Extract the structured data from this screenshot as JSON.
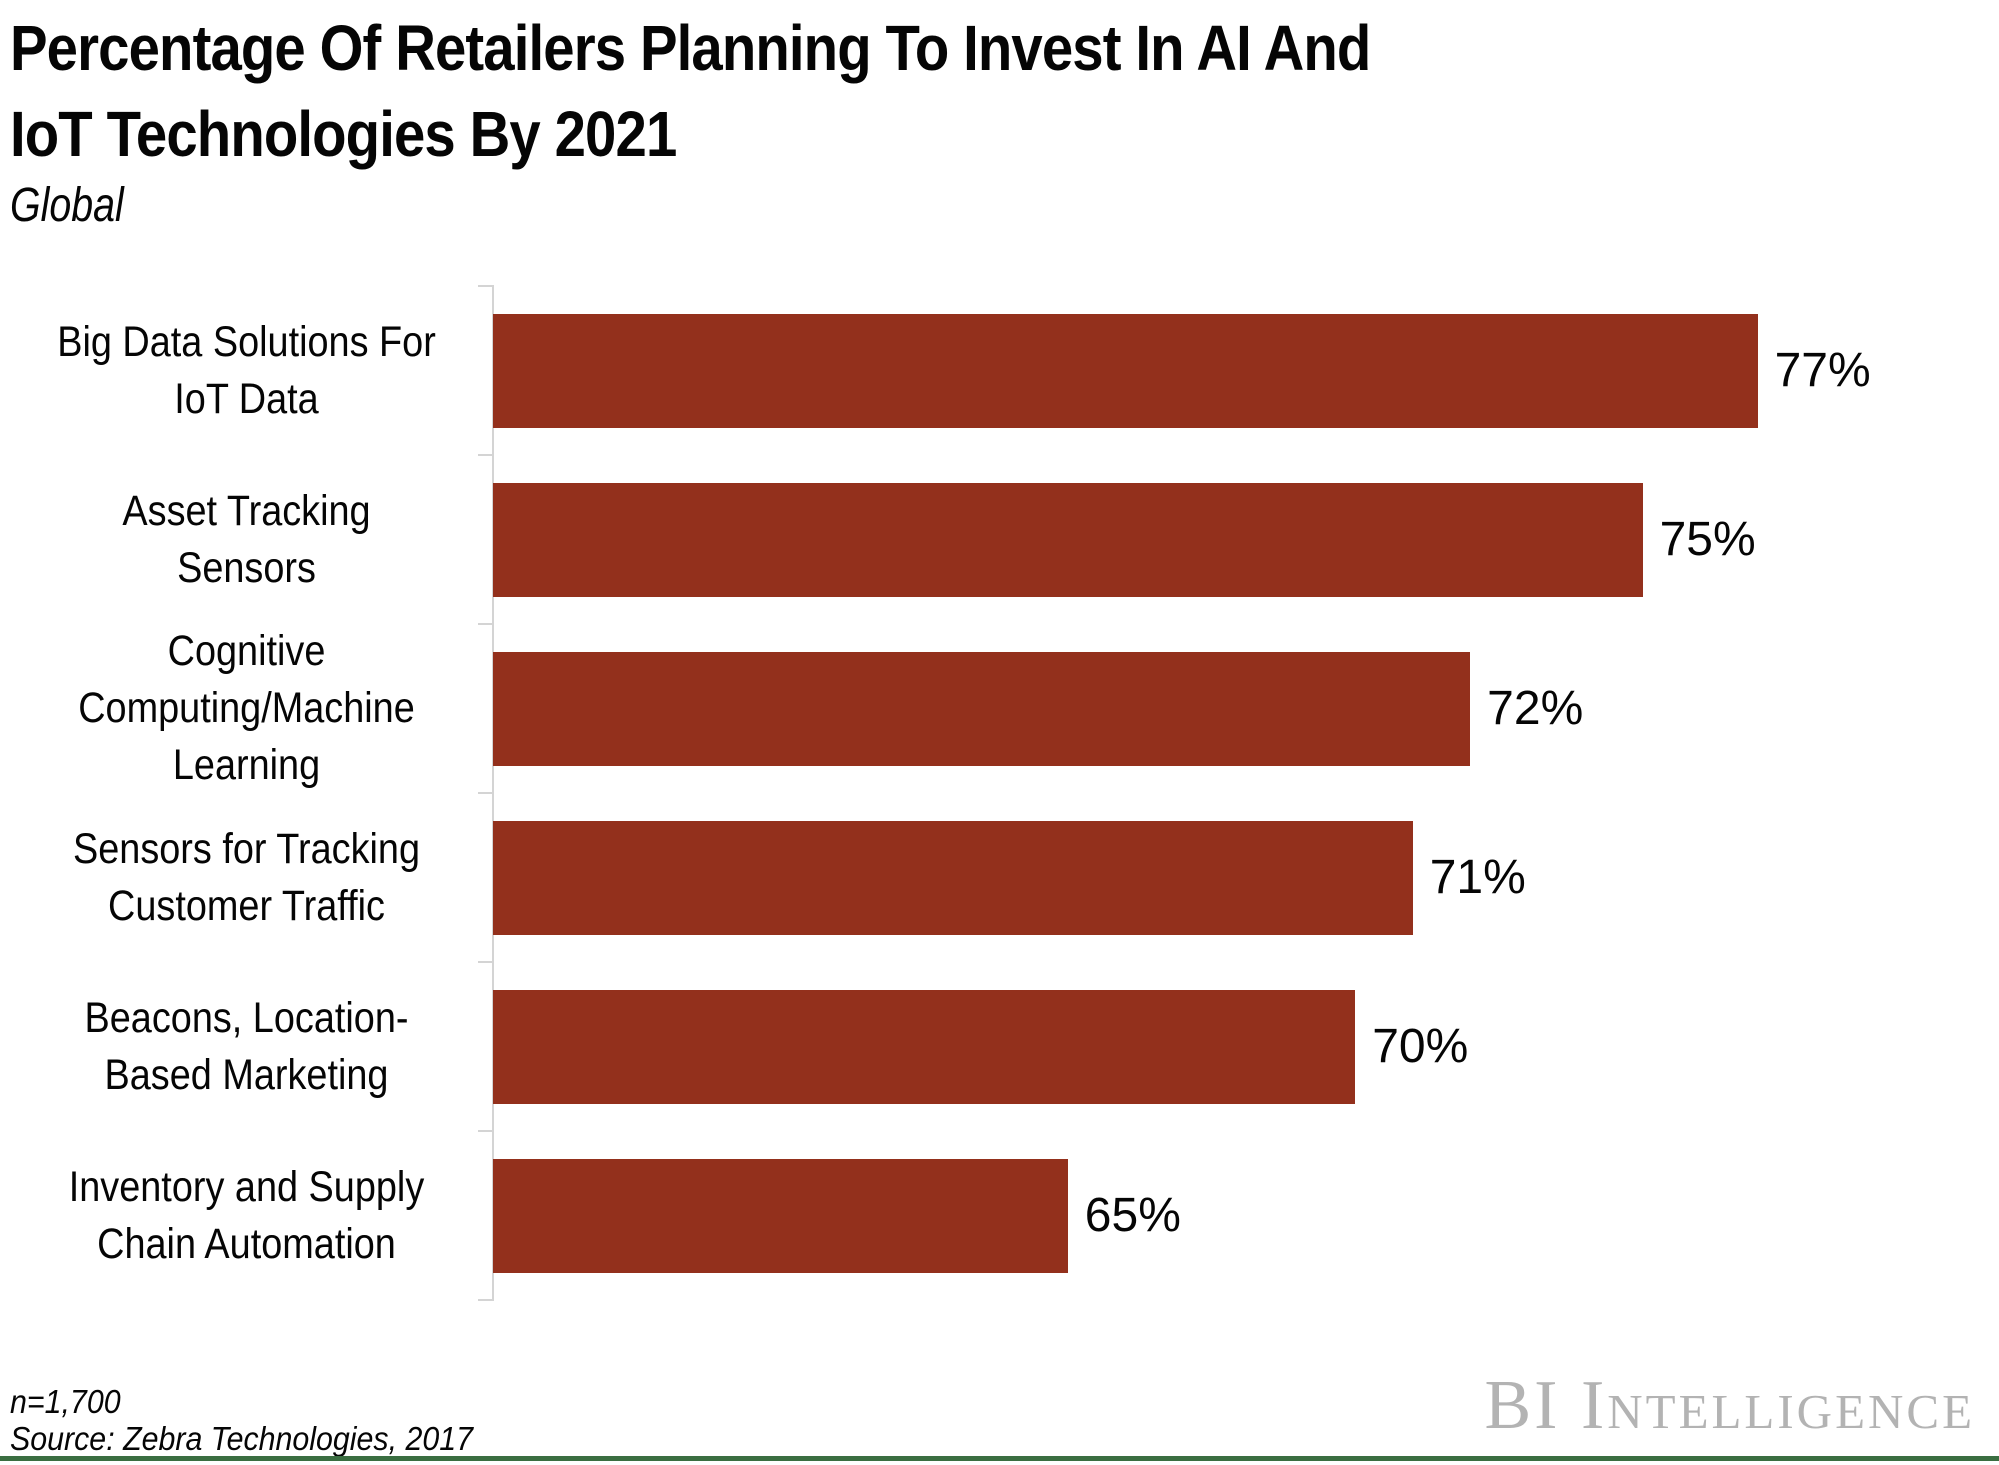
{
  "chart_data": {
    "type": "bar",
    "orientation": "horizontal",
    "title": "Percentage Of Retailers Planning To Invest In AI And IoT Technologies By 2021",
    "title_lines": [
      "Percentage Of Retailers Planning To Invest In AI And",
      "IoT Technologies By 2021"
    ],
    "subtitle": "Global",
    "categories": [
      "Big Data Solutions For IoT Data",
      "Asset Tracking Sensors",
      "Cognitive Computing/Machine Learning",
      "Sensors for Tracking Customer Traffic",
      "Beacons, Location-Based Marketing",
      "Inventory and Supply Chain Automation"
    ],
    "category_lines": [
      [
        "Big Data Solutions For",
        "IoT Data"
      ],
      [
        "Asset Tracking Sensors"
      ],
      [
        "Cognitive",
        "Computing/Machine",
        "Learning"
      ],
      [
        "Sensors for Tracking",
        "Customer Traffic"
      ],
      [
        "Beacons, Location-",
        "Based Marketing"
      ],
      [
        "Inventory and Supply",
        "Chain Automation"
      ]
    ],
    "values": [
      77,
      75,
      72,
      71,
      70,
      65
    ],
    "value_labels": [
      "77%",
      "75%",
      "72%",
      "71%",
      "70%",
      "65%"
    ],
    "unit": "%",
    "xlim": [
      55,
      81.2
    ],
    "ylabel": "",
    "xlabel": "",
    "grid": false,
    "legend": false,
    "bar_color": "#93301C",
    "axis_color": "#d4d4d4",
    "slot_count": 6
  },
  "footer": {
    "sample_size": "n=1,700",
    "source": "Source: Zebra Technologies, 2017",
    "brand": "BI Intelligence",
    "accent_line_color": "#3a6e41"
  }
}
